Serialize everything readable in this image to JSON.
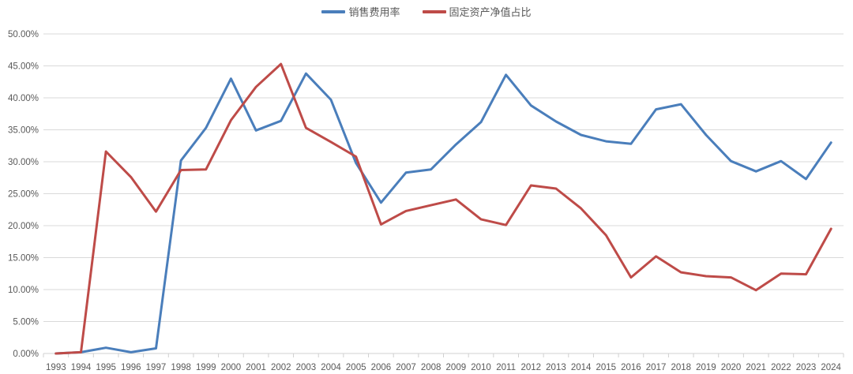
{
  "chart_data": {
    "type": "line",
    "title": "",
    "xlabel": "",
    "ylabel": "",
    "ylim": [
      0,
      0.5
    ],
    "yticks": [
      "0.00%",
      "5.00%",
      "10.00%",
      "15.00%",
      "20.00%",
      "25.00%",
      "30.00%",
      "35.00%",
      "40.00%",
      "45.00%",
      "50.00%"
    ],
    "grid": true,
    "legend_position": "top",
    "x": [
      "1993",
      "1994",
      "1995",
      "1996",
      "1997",
      "1998",
      "1999",
      "2000",
      "2001",
      "2002",
      "2003",
      "2004",
      "2005",
      "2006",
      "2007",
      "2008",
      "2009",
      "2010",
      "2011",
      "2012",
      "2013",
      "2014",
      "2015",
      "2016",
      "2017",
      "2018",
      "2019",
      "2020",
      "2021",
      "2022",
      "2023",
      "2024"
    ],
    "series": [
      {
        "name": "销售费用率",
        "color": "#4a7ebb",
        "values": [
          0.0,
          0.002,
          0.009,
          0.002,
          0.008,
          0.302,
          0.353,
          0.43,
          0.349,
          0.364,
          0.438,
          0.397,
          0.298,
          0.236,
          0.283,
          0.288,
          0.327,
          0.362,
          0.436,
          0.388,
          0.363,
          0.342,
          0.332,
          0.328,
          0.382,
          0.39,
          0.342,
          0.301,
          0.285,
          0.301,
          0.273,
          0.33
        ]
      },
      {
        "name": "固定资产净值占比",
        "color": "#be4b48",
        "values": [
          0.0,
          0.002,
          0.316,
          0.276,
          0.222,
          0.287,
          0.288,
          0.365,
          0.417,
          0.453,
          0.353,
          0.331,
          0.308,
          0.202,
          0.223,
          0.232,
          0.241,
          0.21,
          0.201,
          0.263,
          0.258,
          0.227,
          0.185,
          0.119,
          0.152,
          0.127,
          0.121,
          0.119,
          0.099,
          0.125,
          0.124,
          0.195
        ]
      }
    ]
  }
}
